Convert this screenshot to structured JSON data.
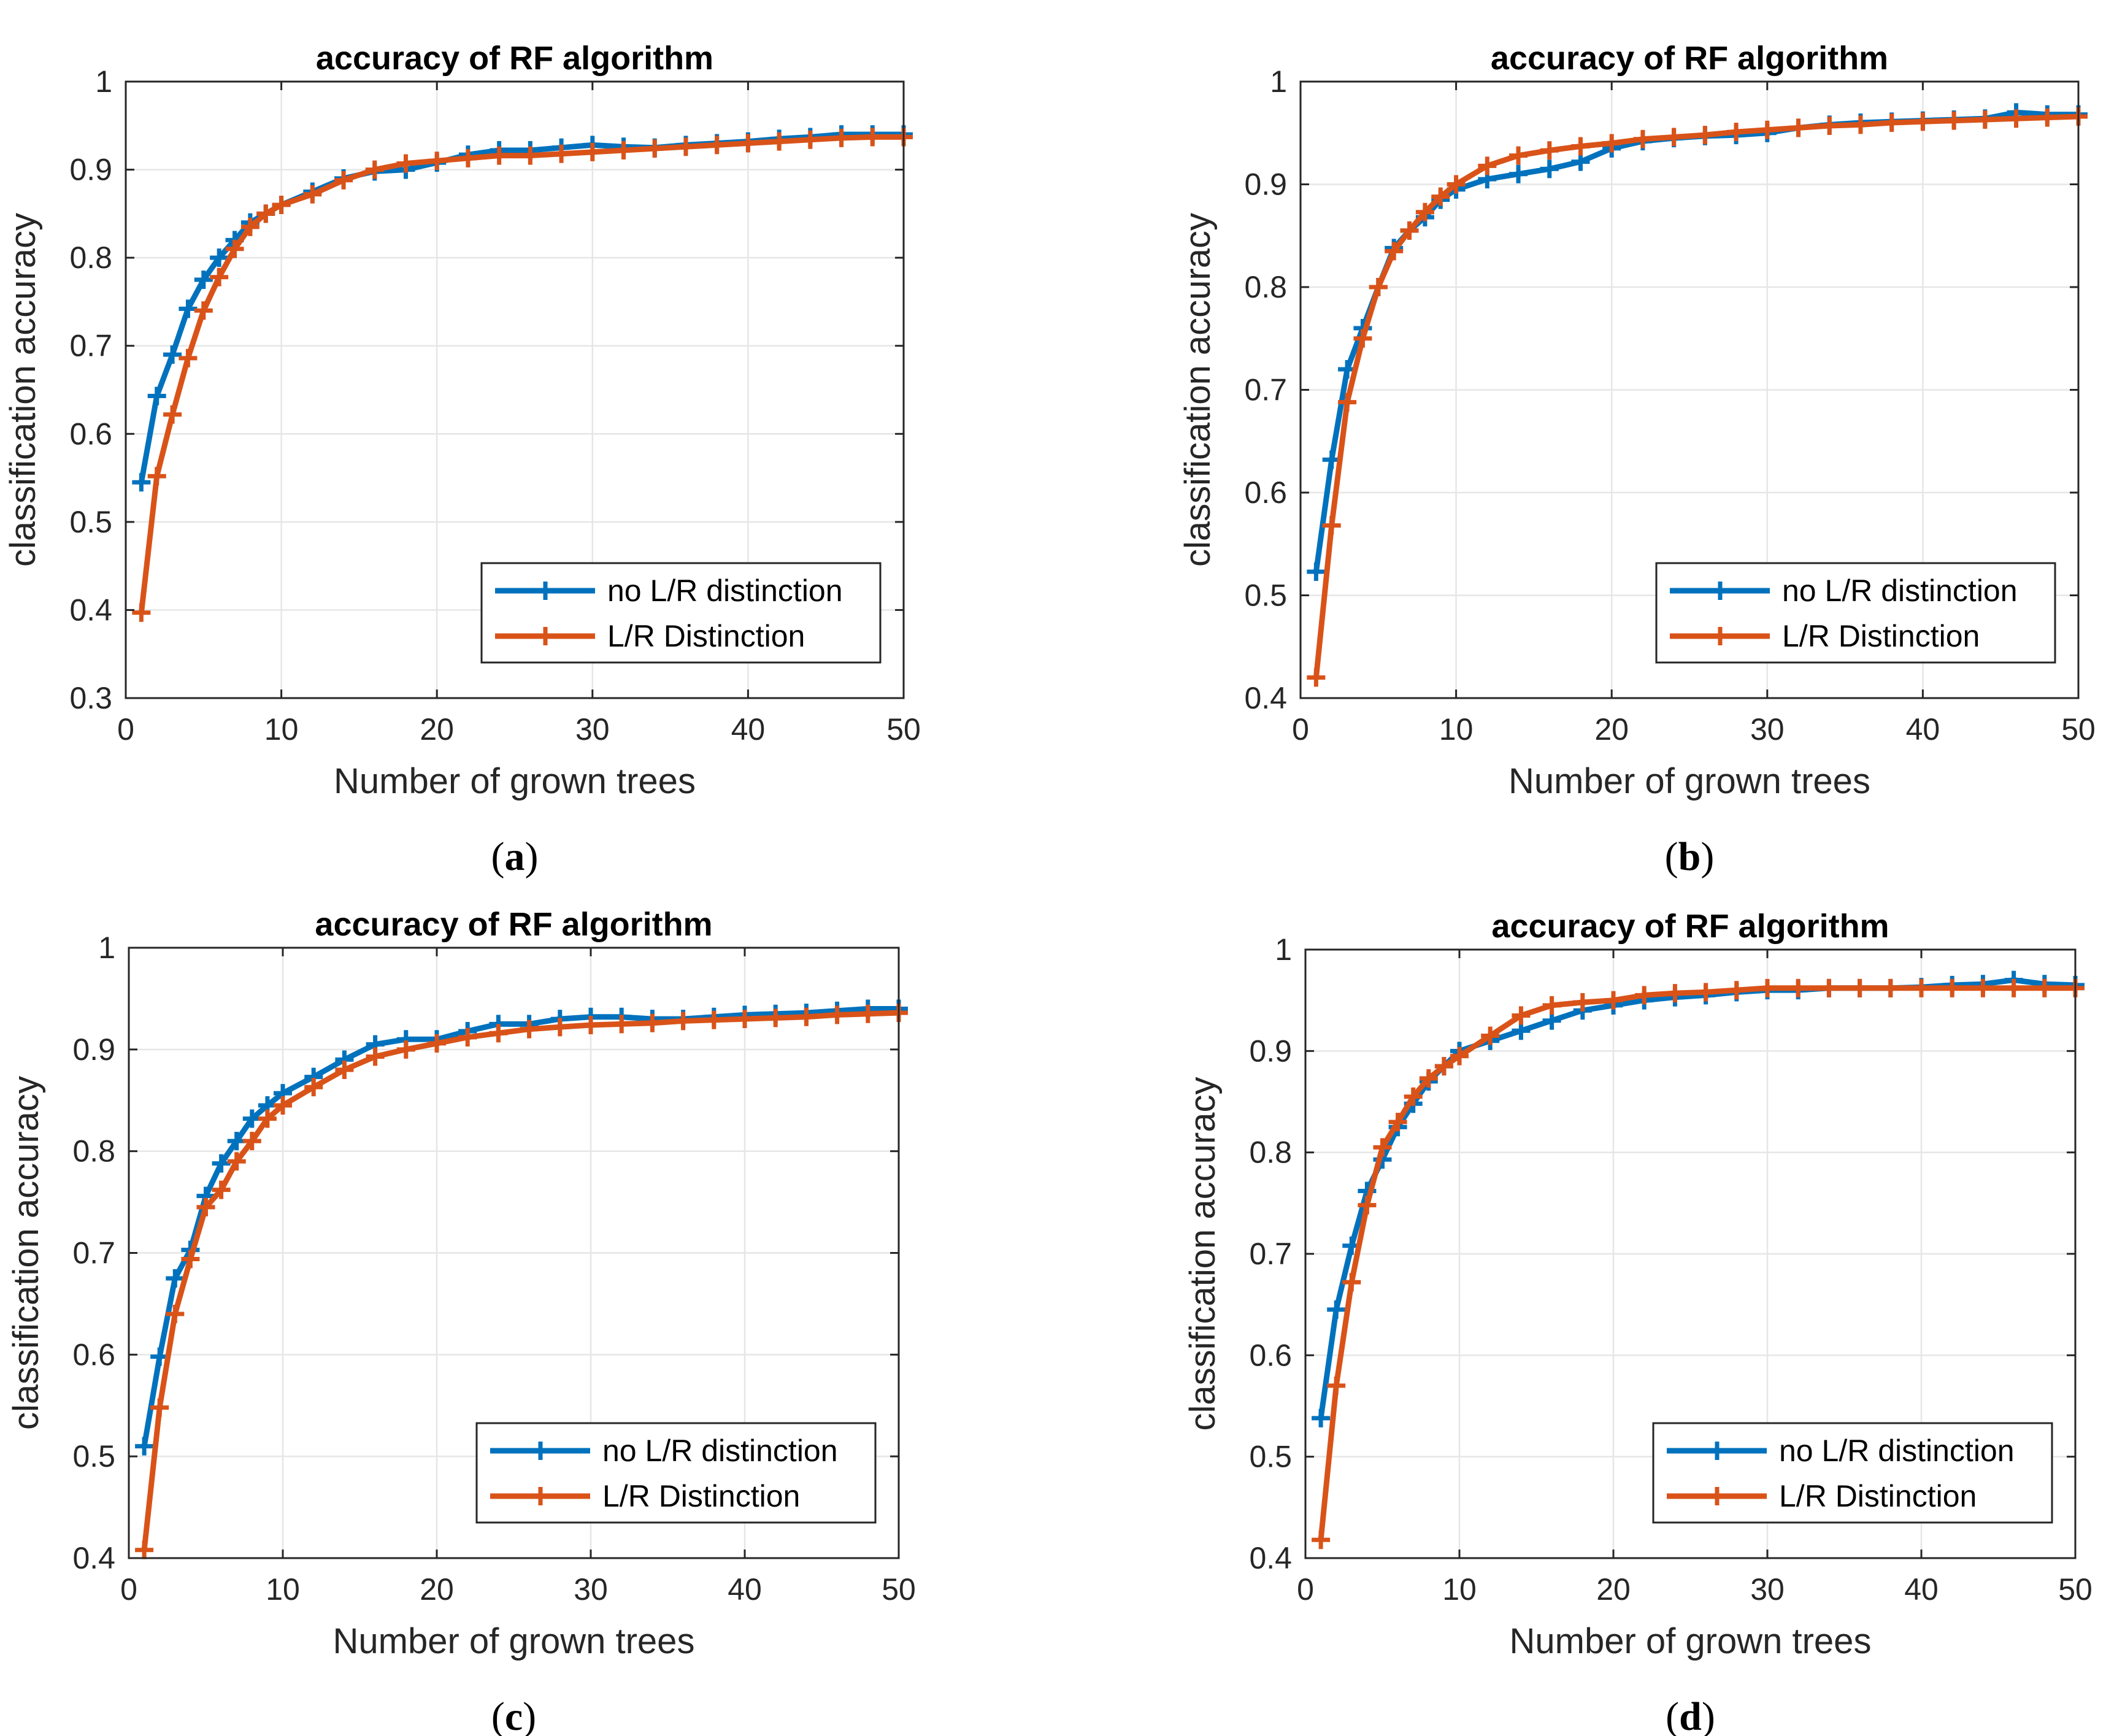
{
  "figure": {
    "panels": [
      {
        "caption_letter": "a"
      },
      {
        "caption_letter": "b"
      },
      {
        "caption_letter": "c"
      },
      {
        "caption_letter": "d"
      }
    ]
  },
  "colors": {
    "series_1": "#0072BD",
    "series_2": "#D95319",
    "grid": "#e6e6e6",
    "axis": "#262626"
  },
  "chart_data": [
    {
      "type": "line",
      "title": "accuracy of RF algorithm",
      "xlabel": "Number of grown trees",
      "ylabel": "classification accuracy",
      "xlim": [
        0,
        50
      ],
      "ylim": [
        0.3,
        1
      ],
      "xticks": [
        0,
        10,
        20,
        30,
        40,
        50
      ],
      "yticks": [
        0.3,
        0.4,
        0.5,
        0.6,
        0.7,
        0.8,
        0.9,
        1
      ],
      "ytick_labels": [
        "0.3",
        "0.4",
        "0.5",
        "0.6",
        "0.7",
        "0.8",
        "0.9",
        "1"
      ],
      "grid": true,
      "legend": "bottom-right",
      "series": [
        {
          "name": "no L/R distinction",
          "color": "#0072BD",
          "x": [
            1,
            2,
            3,
            4,
            5,
            6,
            7,
            8,
            9,
            10,
            12,
            14,
            16,
            18,
            20,
            22,
            24,
            26,
            28,
            30,
            32,
            34,
            36,
            38,
            40,
            42,
            44,
            46,
            48,
            50
          ],
          "values": [
            0.545,
            0.643,
            0.69,
            0.742,
            0.775,
            0.8,
            0.82,
            0.84,
            0.85,
            0.86,
            0.875,
            0.89,
            0.898,
            0.9,
            0.908,
            0.917,
            0.922,
            0.922,
            0.925,
            0.928,
            0.926,
            0.925,
            0.928,
            0.93,
            0.932,
            0.935,
            0.937,
            0.94,
            0.94,
            0.94
          ]
        },
        {
          "name": "L/R Distinction",
          "color": "#D95319",
          "x": [
            1,
            2,
            3,
            4,
            5,
            6,
            7,
            8,
            9,
            10,
            12,
            14,
            16,
            18,
            20,
            22,
            24,
            26,
            28,
            30,
            32,
            34,
            36,
            38,
            40,
            42,
            44,
            46,
            48,
            50
          ],
          "values": [
            0.397,
            0.552,
            0.622,
            0.686,
            0.74,
            0.778,
            0.81,
            0.835,
            0.85,
            0.86,
            0.872,
            0.888,
            0.9,
            0.907,
            0.91,
            0.913,
            0.916,
            0.916,
            0.918,
            0.92,
            0.922,
            0.924,
            0.926,
            0.928,
            0.93,
            0.932,
            0.934,
            0.936,
            0.937,
            0.937
          ]
        }
      ]
    },
    {
      "type": "line",
      "title": "accuracy of RF algorithm",
      "xlabel": "Number of grown trees",
      "ylabel": "classification accuracy",
      "xlim": [
        0,
        50
      ],
      "ylim": [
        0.4,
        1
      ],
      "xticks": [
        0,
        10,
        20,
        30,
        40,
        50
      ],
      "yticks": [
        0.4,
        0.5,
        0.6,
        0.7,
        0.8,
        0.9,
        1
      ],
      "ytick_labels": [
        "0.4",
        "0.5",
        "0.6",
        "0.7",
        "0.8",
        "0.9",
        "1"
      ],
      "grid": true,
      "legend": "bottom-right",
      "series": [
        {
          "name": "no L/R distinction",
          "color": "#0072BD",
          "x": [
            1,
            2,
            3,
            4,
            5,
            6,
            7,
            8,
            9,
            10,
            12,
            14,
            16,
            18,
            20,
            22,
            24,
            26,
            28,
            30,
            32,
            34,
            36,
            38,
            40,
            42,
            44,
            46,
            48,
            50
          ],
          "values": [
            0.523,
            0.632,
            0.72,
            0.76,
            0.8,
            0.838,
            0.855,
            0.868,
            0.885,
            0.895,
            0.905,
            0.91,
            0.915,
            0.922,
            0.935,
            0.942,
            0.945,
            0.947,
            0.948,
            0.95,
            0.955,
            0.958,
            0.96,
            0.961,
            0.962,
            0.963,
            0.964,
            0.97,
            0.968,
            0.968
          ]
        },
        {
          "name": "L/R Distinction",
          "color": "#D95319",
          "x": [
            1,
            2,
            3,
            4,
            5,
            6,
            7,
            8,
            9,
            10,
            12,
            14,
            16,
            18,
            20,
            22,
            24,
            26,
            28,
            30,
            32,
            34,
            36,
            38,
            40,
            42,
            44,
            46,
            48,
            50
          ],
          "values": [
            0.42,
            0.568,
            0.688,
            0.75,
            0.8,
            0.835,
            0.855,
            0.873,
            0.888,
            0.9,
            0.918,
            0.928,
            0.933,
            0.937,
            0.94,
            0.944,
            0.946,
            0.948,
            0.951,
            0.953,
            0.955,
            0.957,
            0.958,
            0.96,
            0.961,
            0.962,
            0.963,
            0.964,
            0.965,
            0.966
          ]
        }
      ]
    },
    {
      "type": "line",
      "title": "accuracy of RF algorithm",
      "xlabel": "Number of grown trees",
      "ylabel": "classification accuracy",
      "xlim": [
        0,
        50
      ],
      "ylim": [
        0.4,
        1
      ],
      "xticks": [
        0,
        10,
        20,
        30,
        40,
        50
      ],
      "yticks": [
        0.4,
        0.5,
        0.6,
        0.7,
        0.8,
        0.9,
        1
      ],
      "ytick_labels": [
        "0.4",
        "0.5",
        "0.6",
        "0.7",
        "0.8",
        "0.9",
        "1"
      ],
      "grid": true,
      "legend": "bottom-right",
      "series": [
        {
          "name": "no L/R distinction",
          "color": "#0072BD",
          "x": [
            1,
            2,
            3,
            4,
            5,
            6,
            7,
            8,
            9,
            10,
            12,
            14,
            16,
            18,
            20,
            22,
            24,
            26,
            28,
            30,
            32,
            34,
            36,
            38,
            40,
            42,
            44,
            46,
            48,
            50
          ],
          "values": [
            0.51,
            0.598,
            0.675,
            0.703,
            0.756,
            0.788,
            0.81,
            0.832,
            0.845,
            0.857,
            0.873,
            0.89,
            0.905,
            0.91,
            0.91,
            0.918,
            0.925,
            0.925,
            0.93,
            0.932,
            0.932,
            0.93,
            0.93,
            0.932,
            0.934,
            0.935,
            0.936,
            0.938,
            0.94,
            0.94
          ]
        },
        {
          "name": "L/R Distinction",
          "color": "#D95319",
          "x": [
            1,
            2,
            3,
            4,
            5,
            6,
            7,
            8,
            9,
            10,
            12,
            14,
            16,
            18,
            20,
            22,
            24,
            26,
            28,
            30,
            32,
            34,
            36,
            38,
            40,
            42,
            44,
            46,
            48,
            50
          ],
          "values": [
            0.408,
            0.548,
            0.64,
            0.694,
            0.745,
            0.762,
            0.79,
            0.81,
            0.832,
            0.845,
            0.863,
            0.88,
            0.893,
            0.9,
            0.906,
            0.912,
            0.916,
            0.92,
            0.922,
            0.924,
            0.925,
            0.926,
            0.928,
            0.929,
            0.93,
            0.931,
            0.932,
            0.934,
            0.935,
            0.936
          ]
        }
      ]
    },
    {
      "type": "line",
      "title": "accuracy of RF algorithm",
      "xlabel": "Number of grown trees",
      "ylabel": "classification accuracy",
      "xlim": [
        0,
        50
      ],
      "ylim": [
        0.4,
        1
      ],
      "xticks": [
        0,
        10,
        20,
        30,
        40,
        50
      ],
      "yticks": [
        0.4,
        0.5,
        0.6,
        0.7,
        0.8,
        0.9,
        1
      ],
      "ytick_labels": [
        "0.4",
        "0.5",
        "0.6",
        "0.7",
        "0.8",
        "0.9",
        "1"
      ],
      "grid": true,
      "legend": "bottom-right",
      "series": [
        {
          "name": "no L/R distinction",
          "color": "#0072BD",
          "x": [
            1,
            2,
            3,
            4,
            5,
            6,
            7,
            8,
            9,
            10,
            12,
            14,
            16,
            18,
            20,
            22,
            24,
            26,
            28,
            30,
            32,
            34,
            36,
            38,
            40,
            42,
            44,
            46,
            48,
            50
          ],
          "values": [
            0.538,
            0.645,
            0.708,
            0.762,
            0.793,
            0.825,
            0.848,
            0.87,
            0.885,
            0.9,
            0.91,
            0.92,
            0.93,
            0.94,
            0.945,
            0.95,
            0.953,
            0.955,
            0.958,
            0.96,
            0.96,
            0.962,
            0.962,
            0.962,
            0.963,
            0.965,
            0.966,
            0.97,
            0.966,
            0.965
          ]
        },
        {
          "name": "L/R Distinction",
          "color": "#D95319",
          "x": [
            1,
            2,
            3,
            4,
            5,
            6,
            7,
            8,
            9,
            10,
            12,
            14,
            16,
            18,
            20,
            22,
            24,
            26,
            28,
            30,
            32,
            34,
            36,
            38,
            40,
            42,
            44,
            46,
            48,
            50
          ],
          "values": [
            0.418,
            0.57,
            0.672,
            0.748,
            0.805,
            0.83,
            0.855,
            0.873,
            0.885,
            0.895,
            0.915,
            0.935,
            0.945,
            0.948,
            0.95,
            0.955,
            0.957,
            0.958,
            0.96,
            0.962,
            0.962,
            0.962,
            0.962,
            0.962,
            0.962,
            0.962,
            0.962,
            0.962,
            0.962,
            0.962
          ]
        }
      ]
    }
  ]
}
